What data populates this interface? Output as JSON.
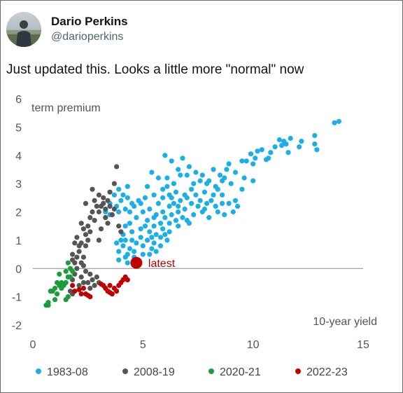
{
  "tweet": {
    "display_name": "Dario Perkins",
    "handle": "@darioperkins",
    "text": "Just updated this. Looks a little more \"normal\" now"
  },
  "chart_data": {
    "type": "scatter",
    "xlabel": "10-year yield",
    "ylabel": "term premium",
    "xlim": [
      0,
      15
    ],
    "ylim": [
      -2,
      6
    ],
    "x_ticks": [
      0,
      5,
      10,
      15
    ],
    "y_ticks": [
      6,
      5,
      4,
      3,
      2,
      1,
      0,
      -1,
      -2
    ],
    "grid": false,
    "legend_position": "bottom",
    "annotation": {
      "text": "latest",
      "x": 4.7,
      "y": 0.2,
      "color": "#c00000"
    },
    "series": [
      {
        "name": "1983-08",
        "color": "#1aafe6",
        "points": [
          [
            13.9,
            5.2
          ],
          [
            13.7,
            5.15
          ],
          [
            12.8,
            4.7
          ],
          [
            12.2,
            4.5
          ],
          [
            12.8,
            4.4
          ],
          [
            12.9,
            4.2
          ],
          [
            11.7,
            4.6
          ],
          [
            11.4,
            4.5
          ],
          [
            11.0,
            4.3
          ],
          [
            11.2,
            4.55
          ],
          [
            12.1,
            4.3
          ],
          [
            11.6,
            4.1
          ],
          [
            11.5,
            4.4
          ],
          [
            11.3,
            4.35
          ],
          [
            10.8,
            4.1
          ],
          [
            10.4,
            4.2
          ],
          [
            9.9,
            4.05
          ],
          [
            10.2,
            4.15
          ],
          [
            10.1,
            3.9
          ],
          [
            10.6,
            3.85
          ],
          [
            10.7,
            3.9
          ],
          [
            9.7,
            3.8
          ],
          [
            10.0,
            3.7
          ],
          [
            9.5,
            3.8
          ],
          [
            9.2,
            3.4
          ],
          [
            8.8,
            3.5
          ],
          [
            8.5,
            3.3
          ],
          [
            8.2,
            3.5
          ],
          [
            8.7,
            3.2
          ],
          [
            7.9,
            3.0
          ],
          [
            7.6,
            3.1
          ],
          [
            7.4,
            3.4
          ],
          [
            7.1,
            3.6
          ],
          [
            7.0,
            3.3
          ],
          [
            6.6,
            3.5
          ],
          [
            6.3,
            3.8
          ],
          [
            6.0,
            4.0
          ],
          [
            6.8,
            3.9
          ],
          [
            8.9,
            3.7
          ],
          [
            9.0,
            3.0
          ],
          [
            8.3,
            2.9
          ],
          [
            7.8,
            2.7
          ],
          [
            7.2,
            2.8
          ],
          [
            6.9,
            2.6
          ],
          [
            6.5,
            2.7
          ],
          [
            6.1,
            2.9
          ],
          [
            5.9,
            2.8
          ],
          [
            5.7,
            3.2
          ],
          [
            5.4,
            3.4
          ],
          [
            5.2,
            2.9
          ],
          [
            6.3,
            2.5
          ],
          [
            7.5,
            2.2
          ],
          [
            8.1,
            2.4
          ],
          [
            8.6,
            2.6
          ],
          [
            8.9,
            2.3
          ],
          [
            9.3,
            2.2
          ],
          [
            9.1,
            2.0
          ],
          [
            8.7,
            1.9
          ],
          [
            8.4,
            2.0
          ],
          [
            8.0,
            1.8
          ],
          [
            7.7,
            2.0
          ],
          [
            7.3,
            1.9
          ],
          [
            6.9,
            2.1
          ],
          [
            6.6,
            2.0
          ],
          [
            6.3,
            1.9
          ],
          [
            6.0,
            1.8
          ],
          [
            5.8,
            1.6
          ],
          [
            5.6,
            1.9
          ],
          [
            5.5,
            1.5
          ],
          [
            5.3,
            1.3
          ],
          [
            5.6,
            1.2
          ],
          [
            5.9,
            1.4
          ],
          [
            6.2,
            1.6
          ],
          [
            6.5,
            1.7
          ],
          [
            6.8,
            1.8
          ],
          [
            7.1,
            1.6
          ],
          [
            6.4,
            2.3
          ],
          [
            5.3,
            2.1
          ],
          [
            5.0,
            2.0
          ],
          [
            4.7,
            1.8
          ],
          [
            4.4,
            1.6
          ],
          [
            4.2,
            1.5
          ],
          [
            4.5,
            1.3
          ],
          [
            4.9,
            1.4
          ],
          [
            5.2,
            1.0
          ],
          [
            5.5,
            0.9
          ],
          [
            5.8,
            1.1
          ],
          [
            6.1,
            1.0
          ],
          [
            5.0,
            0.8
          ],
          [
            4.7,
            0.9
          ],
          [
            4.4,
            0.7
          ],
          [
            4.1,
            0.8
          ],
          [
            3.9,
            0.6
          ],
          [
            4.3,
            0.5
          ],
          [
            4.6,
            0.4
          ],
          [
            5.0,
            0.5
          ],
          [
            4.0,
            1.0
          ],
          [
            3.8,
            0.9
          ],
          [
            4.1,
            1.2
          ],
          [
            5.4,
            0.7
          ],
          [
            3.6,
            1.9
          ],
          [
            3.9,
            2.0
          ],
          [
            4.2,
            2.1
          ],
          [
            4.5,
            2.3
          ],
          [
            4.8,
            2.4
          ],
          [
            4.3,
            2.5
          ],
          [
            4.0,
            2.4
          ],
          [
            3.7,
            2.6
          ],
          [
            3.5,
            2.3
          ],
          [
            3.3,
            2.0
          ],
          [
            3.9,
            2.8
          ],
          [
            4.3,
            2.9
          ],
          [
            4.6,
            2.2
          ],
          [
            4.9,
            2.3
          ],
          [
            5.1,
            2.5
          ],
          [
            4.4,
            2.0
          ],
          [
            3.8,
            2.2
          ],
          [
            4.1,
            2.6
          ],
          [
            3.3,
            1.8
          ],
          [
            3.5,
            1.9
          ],
          [
            6.7,
            2.4
          ],
          [
            7.4,
            2.6
          ],
          [
            7.9,
            2.3
          ],
          [
            8.3,
            2.2
          ],
          [
            9.5,
            2.8
          ],
          [
            10.0,
            3.1
          ],
          [
            9.6,
            3.2
          ],
          [
            8.0,
            3.1
          ],
          [
            7.7,
            3.3
          ],
          [
            8.4,
            2.8
          ],
          [
            6.1,
            3.2
          ],
          [
            5.9,
            2.5
          ],
          [
            5.5,
            2.6
          ],
          [
            7.3,
            3.0
          ],
          [
            6.7,
            3.3
          ],
          [
            6.4,
            3.0
          ],
          [
            6.2,
            2.6
          ],
          [
            7.0,
            2.5
          ],
          [
            7.6,
            2.4
          ],
          [
            8.2,
            2.6
          ],
          [
            8.6,
            3.1
          ],
          [
            5.7,
            2.3
          ],
          [
            5.2,
            1.7
          ],
          [
            5.5,
            1.8
          ],
          [
            5.9,
            2.0
          ],
          [
            6.2,
            2.2
          ],
          [
            6.6,
            2.2
          ],
          [
            7.2,
            2.3
          ],
          [
            7.8,
            2.1
          ],
          [
            8.6,
            2.3
          ],
          [
            9.2,
            2.4
          ],
          [
            7.0,
            1.7
          ],
          [
            6.6,
            1.5
          ],
          [
            6.2,
            1.3
          ],
          [
            5.8,
            0.8
          ],
          [
            6.0,
            1.2
          ],
          [
            5.6,
            0.6
          ],
          [
            5.3,
            0.5
          ],
          [
            4.9,
            1.1
          ],
          [
            4.5,
            1.0
          ],
          [
            4.2,
            1.0
          ],
          [
            3.9,
            0.3
          ],
          [
            4.3,
            0.2
          ],
          [
            4.6,
            0.6
          ],
          [
            4.2,
            0.4
          ],
          [
            5.1,
            1.5
          ],
          [
            5.4,
            1.1
          ]
        ]
      },
      {
        "name": "2008-19",
        "color": "#555555",
        "points": [
          [
            3.8,
            3.6
          ],
          [
            3.7,
            3.0
          ],
          [
            3.5,
            2.7
          ],
          [
            3.4,
            2.4
          ],
          [
            3.2,
            2.3
          ],
          [
            3.1,
            2.2
          ],
          [
            3.3,
            2.1
          ],
          [
            3.0,
            2.0
          ],
          [
            2.9,
            2.2
          ],
          [
            3.2,
            2.5
          ],
          [
            3.5,
            2.2
          ],
          [
            3.7,
            2.1
          ],
          [
            3.3,
            1.8
          ],
          [
            3.6,
            1.9
          ],
          [
            2.8,
            2.4
          ],
          [
            2.7,
            2.0
          ],
          [
            2.6,
            1.8
          ],
          [
            2.8,
            1.7
          ],
          [
            2.5,
            1.5
          ],
          [
            2.6,
            1.3
          ],
          [
            2.5,
            1.0
          ],
          [
            2.4,
            1.2
          ],
          [
            2.3,
            1.4
          ],
          [
            2.4,
            0.8
          ],
          [
            2.2,
            0.9
          ],
          [
            2.1,
            0.6
          ],
          [
            2.0,
            0.4
          ],
          [
            2.2,
            0.2
          ],
          [
            2.3,
            0.1
          ],
          [
            2.0,
            0.0
          ],
          [
            1.9,
            0.2
          ],
          [
            1.8,
            0.5
          ],
          [
            2.1,
            0.8
          ],
          [
            1.9,
            0.9
          ],
          [
            2.0,
            1.1
          ],
          [
            1.9,
            -0.2
          ],
          [
            1.8,
            -0.4
          ],
          [
            2.2,
            -0.3
          ],
          [
            2.4,
            -0.1
          ],
          [
            2.5,
            -0.5
          ],
          [
            2.7,
            -0.4
          ],
          [
            2.6,
            -0.2
          ],
          [
            2.9,
            -0.3
          ],
          [
            2.8,
            -0.6
          ],
          [
            3.0,
            -0.5
          ],
          [
            2.1,
            -0.6
          ],
          [
            1.7,
            -0.8
          ],
          [
            2.6,
            -0.7
          ],
          [
            2.3,
            -0.5
          ],
          [
            1.8,
            -0.9
          ],
          [
            3.4,
            1.6
          ],
          [
            3.9,
            1.5
          ],
          [
            4.0,
            1.3
          ],
          [
            3.0,
            1.0
          ],
          [
            2.4,
            2.3
          ],
          [
            3.0,
            2.6
          ],
          [
            2.7,
            2.8
          ],
          [
            3.1,
            1.4
          ],
          [
            2.2,
            1.6
          ],
          [
            1.8,
            0.3
          ],
          [
            2.3,
            0.4
          ]
        ]
      },
      {
        "name": "2020-21",
        "color": "#1a9e3c",
        "points": [
          [
            1.6,
            0.2
          ],
          [
            1.7,
            0.0
          ],
          [
            1.5,
            -0.1
          ],
          [
            1.6,
            -0.3
          ],
          [
            1.5,
            -0.5
          ],
          [
            1.3,
            -0.5
          ],
          [
            1.2,
            -0.6
          ],
          [
            1.1,
            -0.5
          ],
          [
            1.0,
            -0.7
          ],
          [
            0.8,
            -0.8
          ],
          [
            0.7,
            -1.2
          ],
          [
            0.6,
            -1.3
          ],
          [
            0.7,
            -1.3
          ],
          [
            1.0,
            -1.1
          ],
          [
            1.1,
            -0.9
          ],
          [
            1.3,
            -0.7
          ],
          [
            1.6,
            -1.0
          ],
          [
            1.5,
            -1.1
          ],
          [
            1.4,
            -0.6
          ],
          [
            1.7,
            -0.3
          ],
          [
            1.8,
            -0.1
          ],
          [
            0.9,
            -0.8
          ],
          [
            1.2,
            -0.2
          ]
        ]
      },
      {
        "name": "2022-23",
        "color": "#c00000",
        "points": [
          [
            1.8,
            -0.6
          ],
          [
            1.9,
            -0.8
          ],
          [
            2.3,
            -0.7
          ],
          [
            2.4,
            -0.9
          ],
          [
            2.6,
            -1.0
          ],
          [
            2.5,
            -0.95
          ],
          [
            3.2,
            -0.6
          ],
          [
            3.3,
            -0.7
          ],
          [
            3.4,
            -0.8
          ],
          [
            3.5,
            -0.6
          ],
          [
            3.6,
            -0.9
          ],
          [
            3.7,
            -0.7
          ],
          [
            3.8,
            -0.8
          ],
          [
            3.9,
            -0.6
          ],
          [
            4.0,
            -0.5
          ],
          [
            4.1,
            -0.4
          ],
          [
            4.2,
            -0.3
          ],
          [
            4.3,
            -0.4
          ],
          [
            3.5,
            -0.85
          ],
          [
            3.1,
            -0.55
          ],
          [
            2.1,
            -0.75
          ],
          [
            2.2,
            -0.9
          ]
        ]
      }
    ]
  }
}
